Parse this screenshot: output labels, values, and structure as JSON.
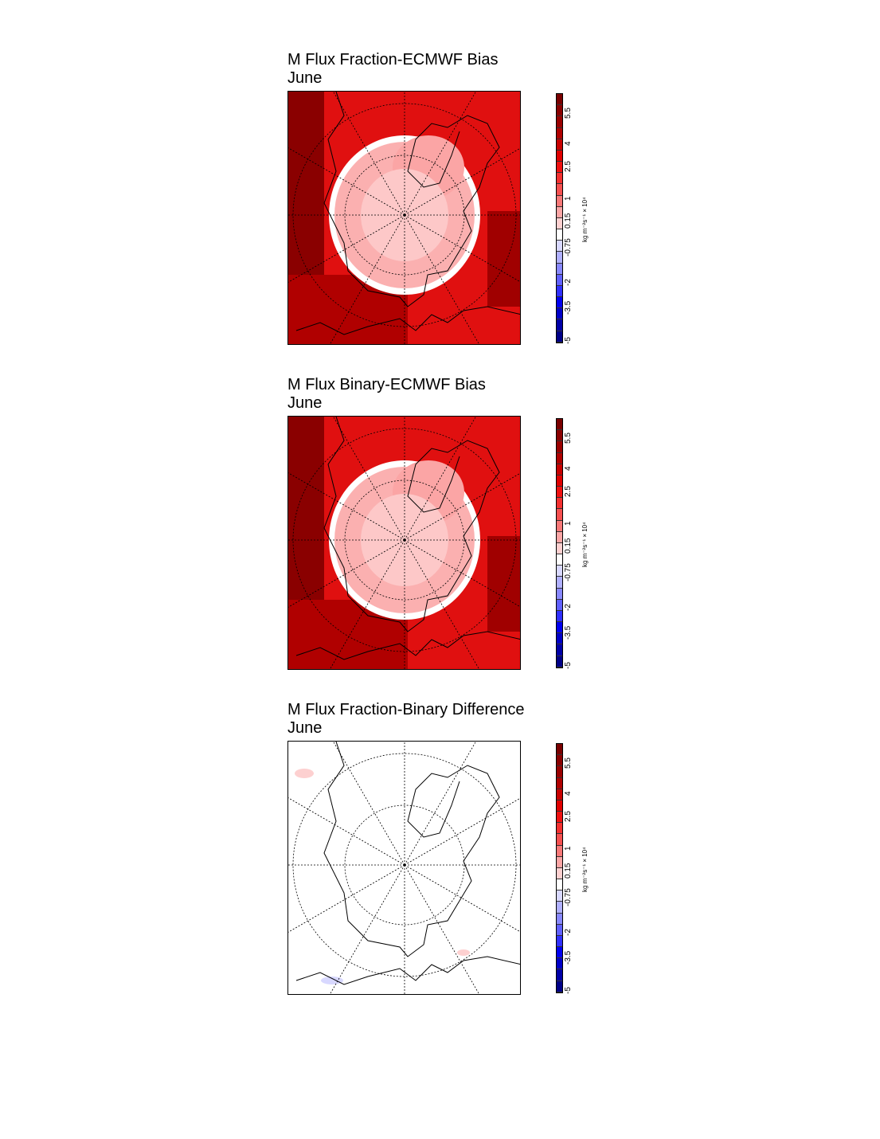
{
  "panels": [
    {
      "title": "M Flux Fraction-ECMWF Bias",
      "subtitle": "June",
      "fill": "strong"
    },
    {
      "title": "M Flux Binary-ECMWF Bias",
      "subtitle": "June",
      "fill": "strong"
    },
    {
      "title": "M Flux Fraction-Binary Difference",
      "subtitle": "June",
      "fill": "weak"
    }
  ],
  "colorbar": {
    "labels": [
      "5.5",
      "4",
      "2.5",
      "1",
      "0.15",
      "-0.75",
      "-2",
      "-3.5",
      "-5"
    ],
    "unit_text": "kg m⁻²s⁻¹ × 10⁴",
    "colors": [
      "#7a0000",
      "#8a0000",
      "#9a0000",
      "#b00000",
      "#c80000",
      "#e00000",
      "#f01010",
      "#f43030",
      "#f65050",
      "#f87878",
      "#fba5a5",
      "#fdd0d0",
      "#ffffff",
      "#d8d8ff",
      "#b0b0ff",
      "#8888ff",
      "#6060ff",
      "#3030ff",
      "#0000f0",
      "#0000c8",
      "#0000a8",
      "#000088"
    ]
  }
}
